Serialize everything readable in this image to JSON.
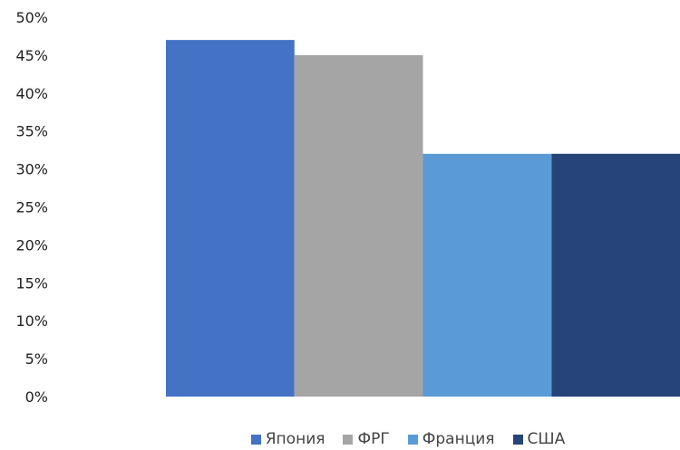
{
  "chart_data": {
    "type": "bar",
    "title": "",
    "xlabel": "",
    "ylabel": "",
    "ylim": [
      0,
      50
    ],
    "yticks": [
      "0%",
      "5%",
      "10%",
      "15%",
      "20%",
      "25%",
      "30%",
      "35%",
      "40%",
      "45%",
      "50%"
    ],
    "grid": false,
    "legend_position": "bottom",
    "series": [
      {
        "name": "Япония",
        "values": [
          47
        ],
        "color": "#4472c4"
      },
      {
        "name": "ФРГ",
        "values": [
          45
        ],
        "color": "#a5a5a5"
      },
      {
        "name": "Франция",
        "values": [
          32
        ],
        "color": "#5b9bd5"
      },
      {
        "name": "США",
        "values": [
          32
        ],
        "color": "#264478"
      }
    ]
  }
}
